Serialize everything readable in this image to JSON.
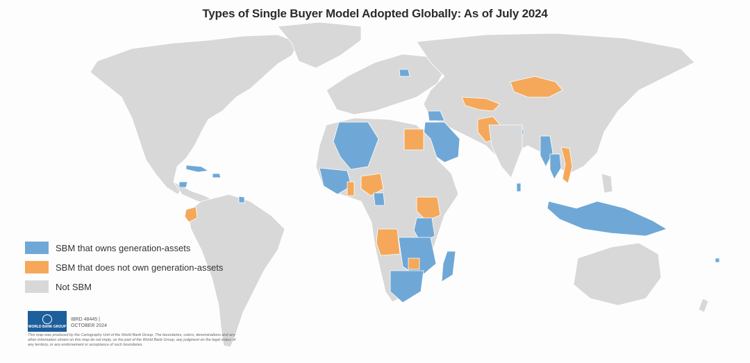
{
  "title": "Types of Single Buyer Model Adopted Globally: As of July 2024",
  "legend": [
    {
      "label": "SBM that owns generation-assets",
      "color": "#6fa8d6"
    },
    {
      "label": "SBM that does not own generation-assets",
      "color": "#f5a85a"
    },
    {
      "label": "Not SBM",
      "color": "#d8d8d8"
    }
  ],
  "colors": {
    "land": "#d8d8d8",
    "owns": "#6fa8d6",
    "not_owns": "#f5a85a",
    "border": "#ffffff"
  },
  "credit": {
    "logo_text": "WORLD BANK GROUP",
    "ibrd": "IBRD 48445 |",
    "date": "OCTOBER 2024",
    "disclaimer": "This map was produced by the Cartography Unit of the World Bank Group. The boundaries, colors, denominations and any other information shown on this map do not imply, on the part of the World Bank Group, any judgment on the legal status of any territory, or any endorsement or acceptance of such boundaries."
  }
}
